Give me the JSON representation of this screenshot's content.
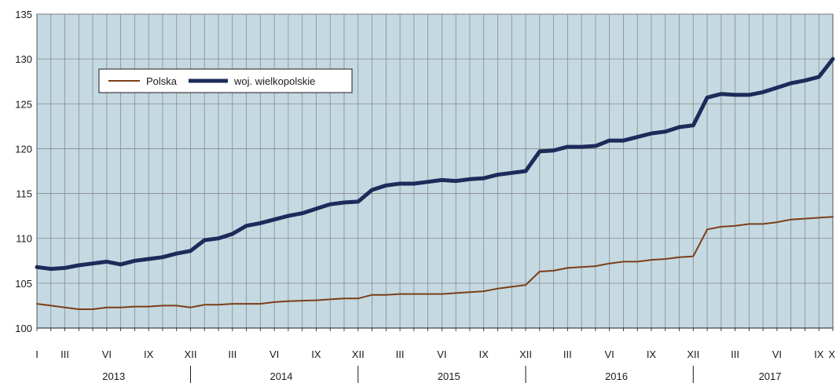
{
  "chart_data": {
    "type": "line",
    "title": "",
    "xlabel": "",
    "ylabel": "",
    "ylim": [
      100,
      135
    ],
    "y_ticks": [
      100,
      105,
      110,
      115,
      120,
      125,
      130,
      135
    ],
    "grid": true,
    "legend_position": "top-left",
    "colors": {
      "plot_background": "#c4d9e1",
      "grid": "#8a8a8a",
      "Polska": "#7b3e19",
      "woj. wielkopolskie": "#1c2b5a"
    },
    "x": [
      "2013-01",
      "2013-02",
      "2013-03",
      "2013-04",
      "2013-05",
      "2013-06",
      "2013-07",
      "2013-08",
      "2013-09",
      "2013-10",
      "2013-11",
      "2013-12",
      "2014-01",
      "2014-02",
      "2014-03",
      "2014-04",
      "2014-05",
      "2014-06",
      "2014-07",
      "2014-08",
      "2014-09",
      "2014-10",
      "2014-11",
      "2014-12",
      "2015-01",
      "2015-02",
      "2015-03",
      "2015-04",
      "2015-05",
      "2015-06",
      "2015-07",
      "2015-08",
      "2015-09",
      "2015-10",
      "2015-11",
      "2015-12",
      "2016-01",
      "2016-02",
      "2016-03",
      "2016-04",
      "2016-05",
      "2016-06",
      "2016-07",
      "2016-08",
      "2016-09",
      "2016-10",
      "2016-11",
      "2016-12",
      "2017-01",
      "2017-02",
      "2017-03",
      "2017-04",
      "2017-05",
      "2017-06",
      "2017-07",
      "2017-08",
      "2017-09",
      "2017-10"
    ],
    "month_tick_labels": [
      {
        "i": 0,
        "label": "I"
      },
      {
        "i": 2,
        "label": "III"
      },
      {
        "i": 5,
        "label": "VI"
      },
      {
        "i": 8,
        "label": "IX"
      },
      {
        "i": 11,
        "label": "XII"
      },
      {
        "i": 14,
        "label": "III"
      },
      {
        "i": 17,
        "label": "VI"
      },
      {
        "i": 20,
        "label": "IX"
      },
      {
        "i": 23,
        "label": "XII"
      },
      {
        "i": 26,
        "label": "III"
      },
      {
        "i": 29,
        "label": "VI"
      },
      {
        "i": 32,
        "label": "IX"
      },
      {
        "i": 35,
        "label": "XII"
      },
      {
        "i": 38,
        "label": "III"
      },
      {
        "i": 41,
        "label": "VI"
      },
      {
        "i": 44,
        "label": "IX"
      },
      {
        "i": 47,
        "label": "XII"
      },
      {
        "i": 50,
        "label": "III"
      },
      {
        "i": 53,
        "label": "VI"
      },
      {
        "i": 56,
        "label": "IX"
      },
      {
        "i": 57,
        "label": "X"
      }
    ],
    "year_labels": [
      {
        "label": "2013",
        "start": 0,
        "end": 11
      },
      {
        "label": "2014",
        "start": 12,
        "end": 23
      },
      {
        "label": "2015",
        "start": 24,
        "end": 35
      },
      {
        "label": "2016",
        "start": 36,
        "end": 47
      },
      {
        "label": "2017",
        "start": 48,
        "end": 57
      }
    ],
    "series": [
      {
        "name": "Polska",
        "values": [
          102.7,
          102.5,
          102.3,
          102.1,
          102.1,
          102.3,
          102.3,
          102.4,
          102.4,
          102.5,
          102.5,
          102.3,
          102.6,
          102.6,
          102.7,
          102.7,
          102.7,
          102.9,
          103.0,
          103.05,
          103.1,
          103.2,
          103.3,
          103.3,
          103.7,
          103.7,
          103.8,
          103.8,
          103.8,
          103.8,
          103.9,
          104.0,
          104.1,
          104.4,
          104.6,
          104.8,
          106.3,
          106.4,
          106.7,
          106.8,
          106.9,
          107.2,
          107.4,
          107.4,
          107.6,
          107.7,
          107.9,
          108.0,
          111.0,
          111.3,
          111.4,
          111.6,
          111.6,
          111.8,
          112.1,
          112.2,
          112.3,
          112.4
        ]
      },
      {
        "name": "woj. wielkopolskie",
        "values": [
          106.8,
          106.6,
          106.7,
          107.0,
          107.2,
          107.4,
          107.1,
          107.5,
          107.7,
          107.9,
          108.3,
          108.6,
          109.8,
          110.0,
          110.5,
          111.4,
          111.7,
          112.1,
          112.5,
          112.8,
          113.3,
          113.8,
          114.0,
          114.1,
          115.4,
          115.9,
          116.1,
          116.1,
          116.3,
          116.5,
          116.4,
          116.6,
          116.7,
          117.1,
          117.3,
          117.5,
          119.7,
          119.8,
          120.2,
          120.2,
          120.3,
          120.9,
          120.9,
          121.3,
          121.7,
          121.9,
          122.4,
          122.6,
          125.7,
          126.1,
          126.0,
          126.0,
          126.3,
          126.8,
          127.3,
          127.6,
          128.0,
          130.0
        ]
      }
    ]
  }
}
